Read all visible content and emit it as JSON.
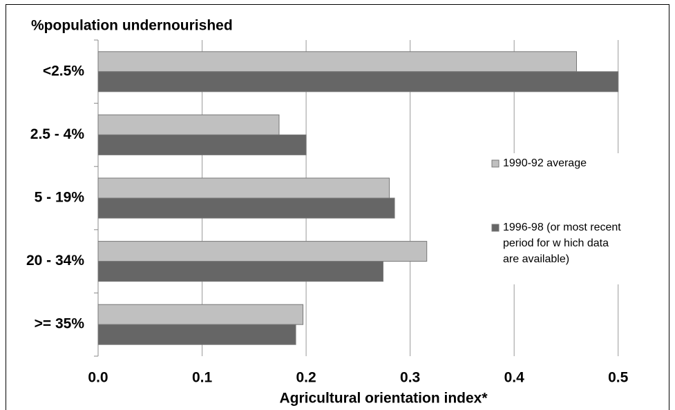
{
  "chart_data": {
    "type": "barh",
    "title": "%population undernourished",
    "x_label": "Agricultural orientation index*",
    "categories": [
      "<2.5%",
      "2.5 - 4%",
      "5 - 19%",
      "20 - 34%",
      ">= 35%"
    ],
    "series": [
      {
        "name": "1990-92 average",
        "color": "#c0c0c0",
        "values": [
          0.46,
          0.174,
          0.28,
          0.316,
          0.197
        ]
      },
      {
        "name": "1996-98 (or most recent period for w hich data are available)",
        "color": "#666666",
        "values": [
          0.5,
          0.2,
          0.285,
          0.274,
          0.19
        ]
      }
    ],
    "xlim": [
      0,
      0.55
    ],
    "xticks": [
      {
        "value": 0,
        "label": "0.0"
      },
      0.1,
      0.2,
      0.3,
      0.4,
      0.5
    ],
    "grid": true,
    "legend": "right"
  }
}
